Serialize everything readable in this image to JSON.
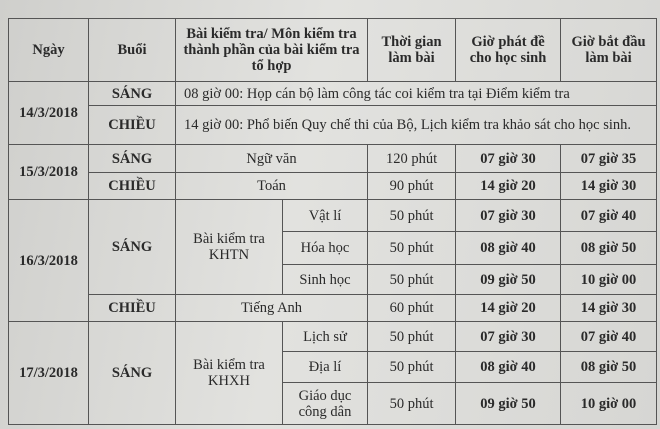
{
  "headers": {
    "date": "Ngày",
    "session": "Buổi",
    "test": "Bài kiểm tra/ Môn kiểm tra thành phần của bài kiểm tra tổ hợp",
    "duration": "Thời gian làm bài",
    "hand_out": "Giờ phát đề cho học sinh",
    "start": "Giờ bắt đầu làm bài"
  },
  "d1": {
    "date": "14/3/2018",
    "s1": "SÁNG",
    "n1": "08 giờ 00: Họp cán bộ làm công tác coi kiểm tra tại Điểm kiểm tra",
    "s2": "CHIỀU",
    "n2": "14 giờ 00: Phổ biến Quy chế thi của Bộ, Lịch kiểm tra khảo sát cho học sinh."
  },
  "d2": {
    "date": "15/3/2018",
    "s1": "SÁNG",
    "t1": [
      "Ngữ văn",
      "120 phút",
      "07 giờ 30",
      "07 giờ 35"
    ],
    "s2": "CHIỀU",
    "t2": [
      "Toán",
      "90 phút",
      "14 giờ 20",
      "14 giờ 30"
    ]
  },
  "d3": {
    "date": "16/3/2018",
    "s1": "SÁNG",
    "group": "Bài kiểm tra KHTN",
    "rows": [
      [
        "Vật lí",
        "50 phút",
        "07 giờ 30",
        "07 giờ 40"
      ],
      [
        "Hóa học",
        "50 phút",
        "08 giờ 40",
        "08 giờ 50"
      ],
      [
        "Sinh học",
        "50 phút",
        "09 giờ 50",
        "10 giờ 00"
      ]
    ],
    "s2": "CHIỀU",
    "t2": [
      "Tiếng Anh",
      "60 phút",
      "14 giờ 20",
      "14 giờ 30"
    ]
  },
  "d4": {
    "date": "17/3/2018",
    "s1": "SÁNG",
    "group": "Bài kiểm tra KHXH",
    "rows": [
      [
        "Lịch sử",
        "50 phút",
        "07 giờ 30",
        "07 giờ 40"
      ],
      [
        "Địa lí",
        "50 phút",
        "08 giờ 40",
        "08 giờ 50"
      ],
      [
        "Giáo dục công dân",
        "50 phút",
        "09 giờ 50",
        "10 giờ 00"
      ]
    ]
  }
}
